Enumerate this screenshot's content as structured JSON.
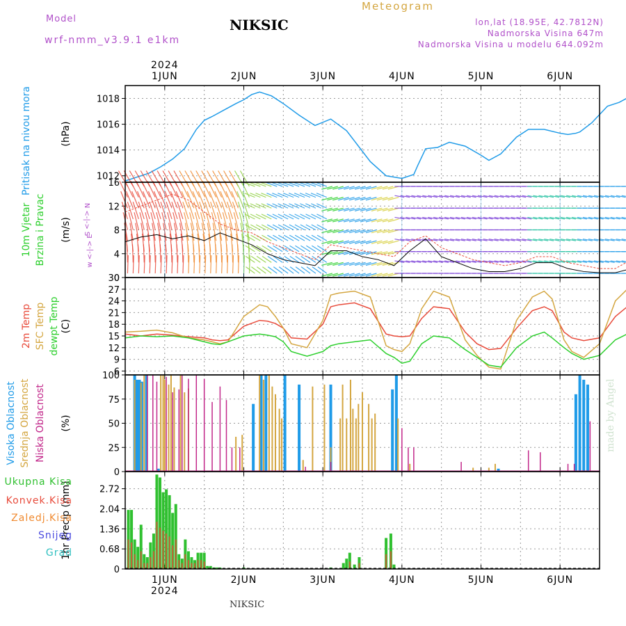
{
  "header": {
    "model_label": "Model",
    "model_name": "wrf-nmm_v3.9.1 e1km",
    "station": "NIKSIC",
    "product": "Meteogram",
    "coords": "lon,lat (18.95E, 42.7812N)",
    "elevation": "Nadmorska Visina 647m",
    "model_elevation": "Nadmorska Visina u modelu 644.092m",
    "watermark": "made by Angel",
    "footer": "NIKSIC"
  },
  "time_axis": {
    "year": "2024",
    "day_labels": [
      "1JUN",
      "2JUN",
      "3JUN",
      "4JUN",
      "5JUN",
      "6JUN"
    ],
    "day_positions": [
      0.5,
      1.5,
      2.5,
      3.5,
      4.5,
      5.5
    ],
    "range_days": [
      0,
      6
    ]
  },
  "colors": {
    "pressure": "#1f9be8",
    "t2m": "#e84a3a",
    "sfc": "#d4a640",
    "dewpt": "#2ccf2c",
    "high_cloud": "#1f9be8",
    "mid_cloud": "#d4a640",
    "low_cloud": "#c2278a",
    "total_precip": "#30c030",
    "conv_precip": "#e84a3a",
    "frozen": "#f08a30",
    "snow": "#4b4bdf",
    "hail": "#30c0c0"
  },
  "chart_data": [
    {
      "type": "line",
      "id": "pressure",
      "ylabel": "(hPa)",
      "title_lines": [
        "Pritisak na nivou mora"
      ],
      "ylim": [
        1011.5,
        1019.0
      ],
      "yticks": [
        1012,
        1014,
        1016,
        1018
      ],
      "series": [
        {
          "x": [
            0.0,
            0.15,
            0.3,
            0.45,
            0.6,
            0.75,
            0.9,
            1.0,
            1.1,
            1.25,
            1.4,
            1.5,
            1.6,
            1.7,
            1.85,
            2.0,
            2.2,
            2.4,
            2.6,
            2.8,
            2.95,
            3.1,
            3.3,
            3.5,
            3.65,
            3.7,
            3.8,
            3.95,
            4.1,
            4.3,
            4.5,
            4.6,
            4.75,
            4.95,
            5.1,
            5.3,
            5.5,
            5.6,
            5.7,
            5.75,
            5.9,
            6.1,
            6.25,
            6.4,
            6.55,
            6.7,
            6.85,
            7.0
          ],
          "y": [
            1011.6,
            1011.9,
            1012.2,
            1012.7,
            1013.3,
            1014.1,
            1015.6,
            1016.3,
            1016.6,
            1017.1,
            1017.6,
            1017.9,
            1018.3,
            1018.5,
            1018.2,
            1017.6,
            1016.7,
            1015.9,
            1016.4,
            1015.5,
            1014.3,
            1013.1,
            1012.0,
            1011.8,
            1012.1,
            1012.8,
            1014.1,
            1014.2,
            1014.6,
            1014.3,
            1013.6,
            1013.2,
            1013.7,
            1015.0,
            1015.6,
            1015.6,
            1015.3,
            1015.2,
            1015.3,
            1015.4,
            1016.1,
            1017.4,
            1017.7,
            1018.2,
            1017.9,
            1017.6,
            1017.4,
            1017.1
          ]
        }
      ]
    },
    {
      "type": "vector",
      "id": "wind",
      "ylabel": "(m/s)",
      "title_lines": [
        "10m Vjetar",
        "Brzina i Pravac"
      ],
      "compass": "w <-|-> E",
      "compass_vertical": "N <-|-> S",
      "ylim": [
        0,
        16
      ],
      "yticks": [
        0,
        4,
        8,
        12,
        16
      ],
      "series": [
        {
          "name": "speed",
          "x": [
            0.0,
            0.2,
            0.4,
            0.6,
            0.8,
            1.0,
            1.2,
            1.4,
            1.6,
            1.8,
            2.0,
            2.2,
            2.4,
            2.6,
            2.8,
            3.0,
            3.2,
            3.4,
            3.6,
            3.8,
            4.0,
            4.2,
            4.4,
            4.6,
            4.8,
            5.0,
            5.2,
            5.4,
            5.6,
            5.8,
            6.0,
            6.2,
            6.4,
            6.6,
            6.8,
            7.0
          ],
          "y": [
            6.0,
            6.8,
            7.2,
            6.5,
            7.0,
            6.2,
            7.5,
            6.5,
            5.5,
            4.0,
            3.0,
            2.5,
            2.0,
            4.5,
            4.5,
            3.5,
            3.0,
            2.0,
            4.5,
            6.5,
            3.5,
            2.5,
            1.5,
            1.0,
            1.0,
            1.5,
            2.5,
            2.5,
            1.5,
            1.0,
            0.8,
            0.8,
            1.5,
            1.5,
            1.0,
            1.5
          ]
        },
        {
          "name": "gust",
          "x": [
            0.0,
            0.2,
            0.4,
            0.6,
            0.8,
            1.0,
            1.2,
            1.4,
            1.6,
            1.8,
            2.0,
            2.2,
            2.4,
            2.6,
            2.8,
            3.0,
            3.2,
            3.4,
            3.6,
            3.8,
            4.0,
            4.2,
            4.4,
            4.6,
            4.8,
            5.0,
            5.2,
            5.4,
            5.6,
            5.8,
            6.0,
            6.2,
            6.4,
            6.6,
            6.8,
            7.0
          ],
          "y": [
            11.0,
            12.0,
            13.0,
            14.0,
            13.0,
            11.0,
            9.0,
            8.0,
            7.5,
            6.0,
            5.0,
            4.0,
            3.0,
            5.5,
            5.0,
            4.5,
            4.0,
            3.5,
            6.0,
            7.0,
            5.0,
            4.0,
            3.0,
            2.5,
            2.0,
            2.5,
            3.5,
            3.5,
            2.5,
            2.0,
            1.5,
            1.5,
            3.0,
            3.0,
            2.5,
            2.5
          ]
        }
      ]
    },
    {
      "type": "line",
      "id": "temperature",
      "ylabel": "(C)",
      "title_lines": [
        "2m Temp",
        "SFC Temp",
        "dewpt Temp"
      ],
      "ylim": [
        5,
        30
      ],
      "yticks": [
        6,
        9,
        12,
        15,
        18,
        21,
        24,
        27,
        30
      ],
      "series": [
        {
          "name": "2m Temp",
          "x": [
            0.0,
            0.2,
            0.4,
            0.6,
            0.8,
            1.0,
            1.1,
            1.2,
            1.3,
            1.5,
            1.7,
            1.8,
            1.9,
            2.0,
            2.1,
            2.3,
            2.5,
            2.6,
            2.7,
            2.9,
            3.1,
            3.3,
            3.4,
            3.5,
            3.6,
            3.75,
            3.9,
            4.1,
            4.3,
            4.45,
            4.6,
            4.75,
            4.95,
            5.15,
            5.3,
            5.4,
            5.55,
            5.65,
            5.8,
            6.0,
            6.2,
            6.35,
            6.45,
            6.6,
            6.75,
            6.9,
            7.0
          ],
          "y": [
            15.5,
            15.0,
            15.5,
            15.2,
            14.8,
            14.5,
            14.0,
            13.8,
            14.0,
            17.5,
            19.0,
            18.8,
            18.2,
            17.0,
            14.5,
            14.2,
            18.0,
            22.5,
            23.0,
            23.5,
            22.0,
            15.5,
            15.0,
            14.8,
            15.0,
            19.5,
            22.5,
            22.0,
            16.0,
            13.0,
            11.5,
            11.8,
            17.0,
            21.5,
            22.5,
            21.5,
            16.0,
            14.5,
            13.8,
            14.5,
            20.0,
            22.5,
            21.8,
            20.0,
            15.0,
            12.5,
            12.0
          ]
        },
        {
          "name": "SFC Temp",
          "x": [
            0.0,
            0.2,
            0.4,
            0.6,
            0.8,
            1.0,
            1.1,
            1.2,
            1.3,
            1.5,
            1.7,
            1.8,
            1.9,
            2.0,
            2.1,
            2.3,
            2.5,
            2.6,
            2.7,
            2.9,
            3.1,
            3.3,
            3.4,
            3.5,
            3.6,
            3.75,
            3.9,
            4.1,
            4.3,
            4.45,
            4.6,
            4.75,
            4.95,
            5.15,
            5.3,
            5.4,
            5.55,
            5.65,
            5.8,
            6.0,
            6.2,
            6.35,
            6.45,
            6.6,
            6.75,
            6.9,
            7.0
          ],
          "y": [
            16.0,
            16.2,
            16.5,
            15.8,
            14.5,
            14.0,
            13.5,
            13.0,
            13.5,
            20.0,
            23.0,
            22.5,
            20.0,
            17.0,
            13.0,
            12.0,
            19.0,
            25.5,
            26.0,
            26.5,
            25.0,
            12.5,
            11.5,
            11.0,
            13.0,
            22.0,
            26.5,
            25.0,
            14.0,
            10.0,
            7.0,
            6.5,
            19.0,
            25.0,
            26.5,
            24.5,
            14.0,
            11.0,
            9.5,
            13.0,
            24.0,
            27.0,
            26.0,
            23.0,
            13.0,
            9.0,
            8.5
          ]
        },
        {
          "name": "dewpt Temp",
          "x": [
            0.0,
            0.2,
            0.4,
            0.6,
            0.8,
            1.0,
            1.1,
            1.2,
            1.3,
            1.5,
            1.7,
            1.8,
            1.9,
            2.0,
            2.1,
            2.3,
            2.5,
            2.6,
            2.7,
            2.9,
            3.1,
            3.3,
            3.4,
            3.5,
            3.6,
            3.75,
            3.9,
            4.1,
            4.3,
            4.45,
            4.6,
            4.75,
            4.95,
            5.15,
            5.3,
            5.4,
            5.55,
            5.65,
            5.8,
            6.0,
            6.2,
            6.35,
            6.45,
            6.6,
            6.75,
            6.9,
            7.0
          ],
          "y": [
            14.5,
            15.0,
            14.8,
            15.0,
            14.5,
            13.5,
            13.0,
            12.8,
            13.5,
            15.0,
            15.5,
            15.2,
            14.8,
            13.5,
            11.0,
            9.8,
            11.0,
            12.5,
            13.0,
            13.5,
            14.0,
            10.5,
            9.5,
            8.0,
            8.5,
            13.0,
            15.0,
            14.5,
            11.5,
            9.5,
            7.5,
            7.0,
            12.0,
            15.0,
            16.0,
            14.5,
            12.0,
            10.5,
            9.0,
            10.0,
            14.0,
            15.5,
            16.0,
            14.5,
            10.5,
            9.5,
            9.5
          ]
        }
      ]
    },
    {
      "type": "bar",
      "id": "clouds",
      "ylabel": "(%)",
      "title_lines": [
        "Visoka Oblacnost",
        "Srednja Oblacnost",
        "Niska Oblacnost"
      ],
      "ylim": [
        0,
        100
      ],
      "yticks": [
        0,
        25,
        50,
        75,
        100
      ],
      "series": [
        {
          "name": "Visoka Oblacnost",
          "x": [
            0.12,
            0.15,
            0.18,
            0.21,
            0.27,
            0.42,
            1.62,
            1.72,
            1.78,
            2.02,
            2.2,
            2.6,
            3.38,
            3.43,
            4.72,
            5.7,
            5.75,
            5.8,
            5.85
          ],
          "y": [
            100,
            95,
            95,
            93,
            100,
            3,
            70,
            100,
            100,
            100,
            90,
            90,
            85,
            100,
            3,
            80,
            100,
            95,
            90
          ]
        },
        {
          "name": "Srednja Oblacnost",
          "x": [
            0.12,
            0.2,
            0.24,
            0.45,
            0.48,
            0.5,
            0.55,
            0.58,
            0.62,
            0.7,
            0.75,
            0.8,
            1.4,
            1.48,
            1.7,
            1.75,
            1.82,
            1.86,
            1.9,
            1.95,
            1.98,
            2.25,
            2.37,
            2.52,
            2.6,
            2.72,
            2.75,
            2.8,
            2.85,
            2.88,
            2.92,
            2.95,
            3.0,
            3.08,
            3.12,
            3.16,
            3.45,
            3.6,
            4.4,
            4.6,
            4.68
          ],
          "y": [
            95,
            92,
            100,
            100,
            100,
            95,
            90,
            100,
            87,
            100,
            82,
            86,
            36,
            38,
            100,
            95,
            100,
            88,
            80,
            65,
            55,
            12,
            88,
            90,
            25,
            55,
            90,
            55,
            95,
            65,
            55,
            70,
            82,
            70,
            55,
            60,
            55,
            8,
            4,
            4,
            8
          ]
        },
        {
          "name": "Niska Oblacnost",
          "x": [
            0.28,
            0.35,
            0.4,
            0.52,
            0.6,
            0.68,
            0.72,
            0.8,
            0.9,
            1.0,
            1.1,
            1.2,
            1.28,
            1.35,
            1.45,
            2.28,
            2.6,
            3.5,
            3.58,
            3.65,
            4.25,
            5.1,
            5.25,
            5.6,
            5.68,
            5.88
          ],
          "y": [
            100,
            100,
            93,
            98,
            82,
            85,
            100,
            96,
            100,
            96,
            72,
            88,
            74,
            25,
            25,
            5,
            10,
            45,
            25,
            25,
            10,
            22,
            20,
            8,
            8,
            52
          ]
        }
      ]
    },
    {
      "type": "bar",
      "id": "precip",
      "ylabel": "1hr Precip (mm)",
      "legend": [
        "Ukupna Kisa",
        "Konvek.Kisa",
        "Zaledj.Kisa",
        "Snijeg",
        "Grad"
      ],
      "ylim": [
        0,
        3.3
      ],
      "yticks": [
        0,
        0.68,
        1.36,
        2.04,
        2.72
      ],
      "ytick_labels": [
        "0",
        "0.68",
        "1.36",
        "2.04",
        "2.72"
      ],
      "series": [
        {
          "name": "Ukupna Kisa",
          "x": [
            0.04,
            0.08,
            0.12,
            0.16,
            0.2,
            0.24,
            0.28,
            0.32,
            0.36,
            0.4,
            0.44,
            0.48,
            0.52,
            0.56,
            0.6,
            0.64,
            0.68,
            0.72,
            0.76,
            0.8,
            0.84,
            0.88,
            0.92,
            0.96,
            1.0,
            1.04,
            1.08,
            1.12,
            1.16,
            1.2,
            1.5,
            2.6,
            2.76,
            2.8,
            2.84,
            2.9,
            2.96,
            3.3,
            3.36,
            3.4
          ],
          "y": [
            2.0,
            2.0,
            1.0,
            0.75,
            1.5,
            0.5,
            0.4,
            0.9,
            1.2,
            3.2,
            3.1,
            2.6,
            2.7,
            2.5,
            1.9,
            2.2,
            0.5,
            0.35,
            1.0,
            0.6,
            0.4,
            0.3,
            0.55,
            0.55,
            0.55,
            0.1,
            0.1,
            0.05,
            0.05,
            0.05,
            0.05,
            0.05,
            0.2,
            0.35,
            0.55,
            0.15,
            0.4,
            1.05,
            1.2,
            0.15
          ]
        },
        {
          "name": "Konvek.Kisa",
          "x": [
            0.04,
            0.08,
            0.12,
            0.16,
            0.2,
            0.24,
            0.28,
            0.32,
            0.36,
            0.4,
            0.44,
            0.48,
            0.52,
            0.56,
            0.6,
            0.64,
            0.68,
            0.72,
            0.76,
            0.8,
            0.84,
            0.88,
            0.92,
            0.96,
            1.0,
            2.84,
            2.96,
            3.3,
            3.36
          ],
          "y": [
            1.0,
            0.9,
            0.5,
            0.3,
            0.6,
            0.2,
            0.2,
            0.4,
            0.6,
            1.6,
            1.4,
            1.3,
            1.2,
            1.1,
            0.8,
            1.0,
            0.3,
            0.2,
            0.5,
            0.3,
            0.2,
            0.2,
            0.3,
            0.3,
            0.25,
            0.25,
            0.2,
            0.5,
            0.6
          ]
        }
      ]
    }
  ]
}
